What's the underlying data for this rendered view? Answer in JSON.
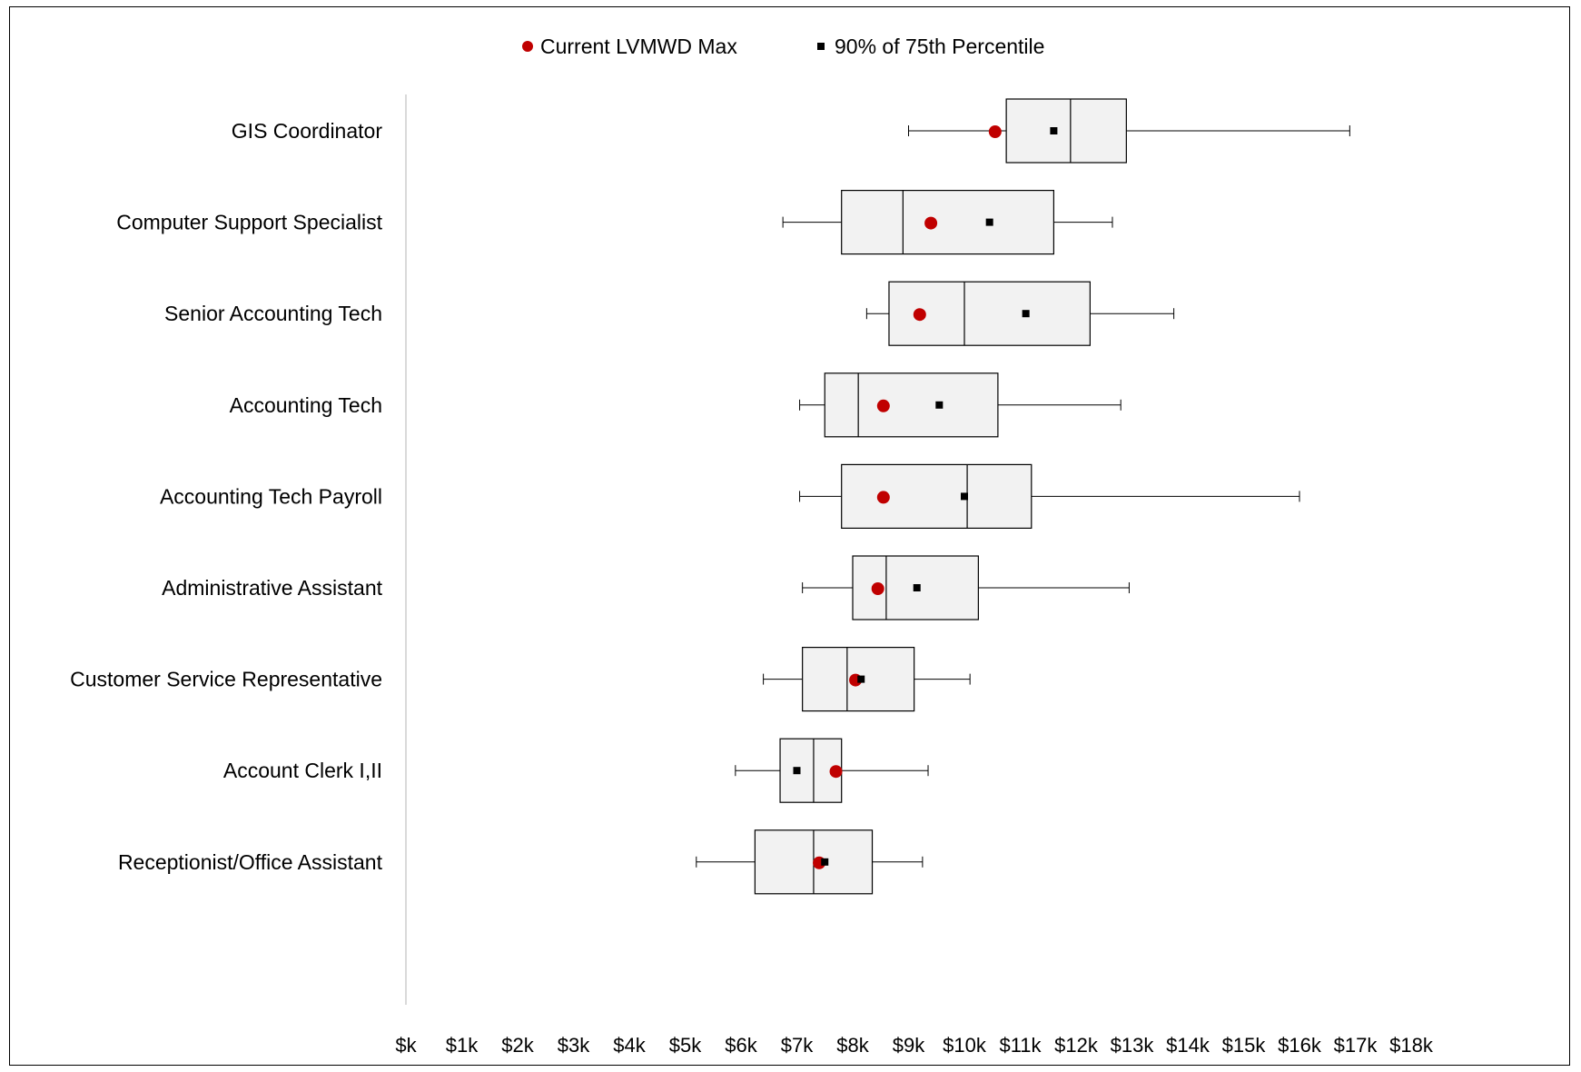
{
  "chart_data": {
    "type": "boxplot",
    "orientation": "horizontal",
    "legend": [
      {
        "name": "Current LVMWD Max",
        "marker": "circle",
        "color": "#c00000"
      },
      {
        "name": "90% of 75th Percentile",
        "marker": "square",
        "color": "#000000"
      }
    ],
    "legend_position": "top-center",
    "x_axis": {
      "min": 0,
      "max": 18,
      "step": 1,
      "tick_labels": [
        "$k",
        "$1k",
        "$2k",
        "$3k",
        "$4k",
        "$5k",
        "$6k",
        "$7k",
        "$8k",
        "$9k",
        "$10k",
        "$11k",
        "$12k",
        "$13k",
        "$14k",
        "$15k",
        "$16k",
        "$17k",
        "$18k"
      ]
    },
    "grid": false,
    "box_fill": "#f2f2f2",
    "categories": [
      "GIS Coordinator",
      "Computer Support Specialist",
      "Senior Accounting Tech",
      "Accounting Tech",
      "Accounting Tech Payroll",
      "Administrative Assistant",
      "Customer Service Representative",
      "Account Clerk I,II",
      "Receptionist/Office Assistant"
    ],
    "boxes": [
      {
        "min": 9.0,
        "q1": 10.75,
        "median": 11.9,
        "q3": 12.9,
        "max": 16.9,
        "current_max": 10.55,
        "p90_of_75th": 11.6
      },
      {
        "min": 6.75,
        "q1": 7.8,
        "median": 8.9,
        "q3": 11.6,
        "max": 12.65,
        "current_max": 9.4,
        "p90_of_75th": 10.45
      },
      {
        "min": 8.25,
        "q1": 8.65,
        "median": 10.0,
        "q3": 12.25,
        "max": 13.75,
        "current_max": 9.2,
        "p90_of_75th": 11.1
      },
      {
        "min": 7.05,
        "q1": 7.5,
        "median": 8.1,
        "q3": 10.6,
        "max": 12.8,
        "current_max": 8.55,
        "p90_of_75th": 9.55
      },
      {
        "min": 7.05,
        "q1": 7.8,
        "median": 10.05,
        "q3": 11.2,
        "max": 16.0,
        "current_max": 8.55,
        "p90_of_75th": 10.0
      },
      {
        "min": 7.1,
        "q1": 8.0,
        "median": 8.6,
        "q3": 10.25,
        "max": 12.95,
        "current_max": 8.45,
        "p90_of_75th": 9.15
      },
      {
        "min": 6.4,
        "q1": 7.1,
        "median": 7.9,
        "q3": 9.1,
        "max": 10.1,
        "current_max": 8.05,
        "p90_of_75th": 8.15
      },
      {
        "min": 5.9,
        "q1": 6.7,
        "median": 7.3,
        "q3": 7.8,
        "max": 9.35,
        "current_max": 7.7,
        "p90_of_75th": 7.0
      },
      {
        "min": 5.2,
        "q1": 6.25,
        "median": 7.3,
        "q3": 8.35,
        "max": 9.25,
        "current_max": 7.4,
        "p90_of_75th": 7.5
      }
    ]
  }
}
